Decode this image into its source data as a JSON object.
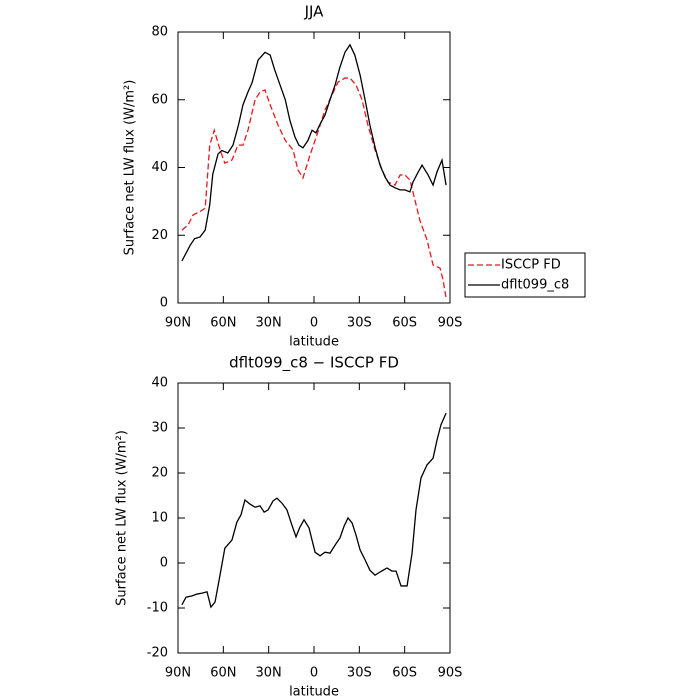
{
  "chart_data": [
    {
      "type": "line",
      "title": "JJA",
      "xlabel": "latitude",
      "ylabel": "Surface net LW flux (W/m²)",
      "xlim": [
        90,
        -90
      ],
      "ylim": [
        0,
        80
      ],
      "xticks": [
        {
          "value": 90,
          "label": "90N"
        },
        {
          "value": 60,
          "label": "60N"
        },
        {
          "value": 30,
          "label": "30N"
        },
        0,
        {
          "value": -30,
          "label": "30S"
        },
        {
          "value": -60,
          "label": "60S"
        },
        {
          "value": -90,
          "label": "90S"
        }
      ],
      "yticks": [
        0,
        20,
        40,
        60,
        80
      ],
      "legend_position": "right",
      "series": [
        {
          "name": "ISCCP FD",
          "color": "#e8191e",
          "style": "dashed",
          "x": [
            87.4,
            83.4,
            80,
            75.4,
            72,
            69,
            66,
            62,
            59,
            54.3,
            50.3,
            47,
            43.7,
            39,
            35.7,
            32.4,
            29,
            23.8,
            19,
            13.9,
            10.6,
            7.3,
            2.6,
            -2.6,
            -7.3,
            -11.9,
            -15.9,
            -20.5,
            -23.8,
            -27.8,
            -31.8,
            -35.7,
            -40.4,
            -45,
            -49,
            -53.6,
            -57,
            -60.2,
            -63.5,
            -66.8,
            -70,
            -74.8,
            -78.8,
            -83.4,
            -85.4,
            -87.4
          ],
          "values": [
            21.5,
            23,
            26,
            27,
            28,
            46.6,
            51,
            45,
            41.3,
            42.2,
            46.6,
            46.6,
            51,
            60,
            62.3,
            62.9,
            58.5,
            52.5,
            48,
            45.2,
            39.3,
            36.9,
            43.7,
            50.5,
            57,
            61.4,
            65.2,
            66.4,
            66.4,
            64.4,
            60,
            52.5,
            45.2,
            39.3,
            35.7,
            34.8,
            37.8,
            37.8,
            36.3,
            30.4,
            24.5,
            18.6,
            11.2,
            10.3,
            6.8,
            1.5
          ]
        },
        {
          "name": "dflt099_c8",
          "color": "#000000",
          "style": "solid",
          "x": [
            87.4,
            82,
            79,
            75.4,
            72,
            69,
            67,
            63.5,
            61,
            57,
            53.6,
            50,
            47,
            43.7,
            41,
            37,
            32.4,
            29,
            26,
            22.5,
            19,
            16,
            12.6,
            10,
            7.3,
            4,
            1.3,
            -1.3,
            -4,
            -7.3,
            -10.6,
            -14,
            -17,
            -20.5,
            -23.8,
            -27,
            -30.5,
            -33.8,
            -37,
            -40.4,
            -43.7,
            -47,
            -50.3,
            -53.6,
            -57,
            -60.2,
            -63.5,
            -65.5,
            -69,
            -71.5,
            -75.5,
            -78.8,
            -81.4,
            -84.7,
            -87.4
          ],
          "values": [
            12.4,
            17,
            19,
            19.5,
            21.5,
            29,
            38,
            44,
            45,
            44.3,
            46.6,
            52.5,
            58.5,
            62.3,
            65,
            71.7,
            74,
            73.2,
            68.8,
            64.4,
            60,
            54,
            49,
            46.6,
            45.8,
            48,
            51,
            50.2,
            52.8,
            55.5,
            60,
            64.4,
            69.4,
            74,
            76.2,
            73.2,
            67.3,
            60,
            52.5,
            46,
            40.7,
            37.2,
            34.8,
            34,
            33.4,
            33.4,
            32.8,
            35.7,
            38.7,
            40.7,
            37.8,
            34.8,
            38.7,
            42.2,
            34.8
          ]
        }
      ]
    },
    {
      "type": "line",
      "title": "dflt099_c8 − ISCCP FD",
      "xlabel": "latitude",
      "ylabel": "Surface net LW flux (W/m²)",
      "xlim": [
        90,
        -90
      ],
      "ylim": [
        -20,
        40
      ],
      "xticks": [
        {
          "value": 90,
          "label": "90N"
        },
        {
          "value": 60,
          "label": "60N"
        },
        {
          "value": 30,
          "label": "30N"
        },
        0,
        {
          "value": -30,
          "label": "30S"
        },
        {
          "value": -60,
          "label": "60S"
        },
        {
          "value": -90,
          "label": "90S"
        }
      ],
      "yticks": [
        -20,
        -10,
        0,
        10,
        20,
        30,
        40
      ],
      "color": "#000000",
      "style": "solid",
      "x": [
        87.4,
        84.7,
        80.7,
        77.4,
        74,
        70.8,
        68.2,
        65.5,
        62.2,
        59,
        54.3,
        51,
        48.3,
        45.7,
        42.4,
        39,
        35.7,
        33,
        30.4,
        27.1,
        24.5,
        21.2,
        17.9,
        14.6,
        11.9,
        9.3,
        6.6,
        3.3,
        -0.7,
        -4,
        -7.3,
        -10.6,
        -14,
        -17.2,
        -19.9,
        -22.5,
        -25.2,
        -27.8,
        -30.5,
        -33.8,
        -37,
        -40.4,
        -43.7,
        -48.3,
        -51.6,
        -54.3,
        -57.6,
        -61.6,
        -64.9,
        -67.5,
        -70.8,
        -74.8,
        -78.8,
        -81.4,
        -84,
        -87.4
      ],
      "values": [
        -9.3,
        -7.6,
        -7.3,
        -6.9,
        -6.7,
        -6.4,
        -9.8,
        -8.7,
        -2.7,
        3.3,
        5.1,
        9.1,
        10.7,
        14,
        13.1,
        12.4,
        12.7,
        11.3,
        11.8,
        13.8,
        14.4,
        13.3,
        11.8,
        8.4,
        5.8,
        8,
        9.6,
        7.8,
        2.4,
        1.6,
        2.4,
        2.2,
        4,
        5.6,
        8.2,
        10,
        8.9,
        6.2,
        2.9,
        0.7,
        -1.6,
        -2.7,
        -2,
        -1.1,
        -1.8,
        -1.8,
        -5.1,
        -5.1,
        2.2,
        11.8,
        18.9,
        21.8,
        23.3,
        27.3,
        30.7,
        33.3
      ]
    }
  ]
}
